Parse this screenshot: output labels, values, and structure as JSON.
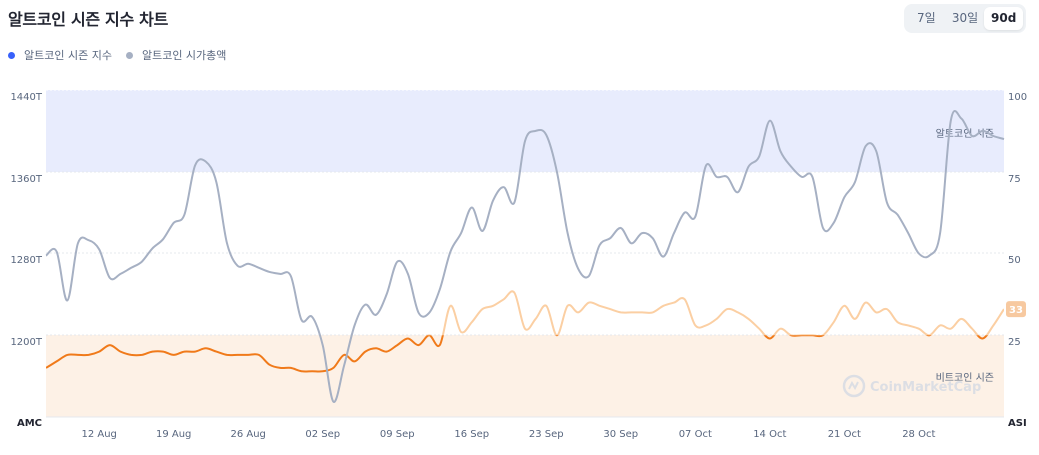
{
  "header": {
    "title": "알트코인 시즌 지수 차트"
  },
  "range_tabs": [
    {
      "label": "7일",
      "active": false
    },
    {
      "label": "30일",
      "active": false
    },
    {
      "label": "90d",
      "active": true
    }
  ],
  "legend": [
    {
      "label": "알트코인 시즌 지수",
      "color": "#3861fb"
    },
    {
      "label": "알트코인 시가총액",
      "color": "#a6b0c3"
    }
  ],
  "watermark": "CoinMarketCap",
  "colors": {
    "altseason_band": "#e8ecfd",
    "bitcoin_band": "#fdf1e6",
    "index_line_dark": "#f07a1a",
    "index_line_light": "#fbcfa3",
    "marketcap_line": "#a6b0c3",
    "badge": "#f7c9a0"
  },
  "chart_data": {
    "type": "line",
    "title": "알트코인 시즌 지수 차트",
    "x_tick_labels": [
      "12 Aug",
      "19 Aug",
      "26 Aug",
      "02 Sep",
      "09 Sep",
      "16 Sep",
      "23 Sep",
      "30 Sep",
      "07 Oct",
      "14 Oct",
      "21 Oct",
      "28 Oct"
    ],
    "x_range": [
      "2024-08-07",
      "2024-11-05"
    ],
    "left_axis": {
      "label": "AMC",
      "ticks": [
        "1440T",
        "1360T",
        "1280T",
        "1200T"
      ],
      "range": [
        1120,
        1440
      ]
    },
    "right_axis": {
      "label": "ASI",
      "ticks": [
        "100",
        "75",
        "50",
        "25"
      ],
      "range": [
        0,
        100
      ]
    },
    "bands": [
      {
        "label": "알트코인 시즌",
        "from": 75,
        "to": 100
      },
      {
        "label": "비트코인 시즌",
        "from": 0,
        "to": 25
      }
    ],
    "current_value_badge": "33",
    "grid": true,
    "legend_position": "top-left",
    "series": [
      {
        "name": "알트코인 시즌 지수",
        "axis": "right",
        "points": [
          [
            "2024-08-07",
            15
          ],
          [
            "2024-08-08",
            17
          ],
          [
            "2024-08-09",
            19
          ],
          [
            "2024-08-10",
            19
          ],
          [
            "2024-08-11",
            19
          ],
          [
            "2024-08-12",
            20
          ],
          [
            "2024-08-13",
            22
          ],
          [
            "2024-08-14",
            20
          ],
          [
            "2024-08-15",
            19
          ],
          [
            "2024-08-16",
            19
          ],
          [
            "2024-08-17",
            20
          ],
          [
            "2024-08-18",
            20
          ],
          [
            "2024-08-19",
            19
          ],
          [
            "2024-08-20",
            20
          ],
          [
            "2024-08-21",
            20
          ],
          [
            "2024-08-22",
            21
          ],
          [
            "2024-08-23",
            20
          ],
          [
            "2024-08-24",
            19
          ],
          [
            "2024-08-25",
            19
          ],
          [
            "2024-08-26",
            19
          ],
          [
            "2024-08-27",
            19
          ],
          [
            "2024-08-28",
            16
          ],
          [
            "2024-08-29",
            15
          ],
          [
            "2024-08-30",
            15
          ],
          [
            "2024-08-31",
            14
          ],
          [
            "2024-09-01",
            14
          ],
          [
            "2024-09-02",
            14
          ],
          [
            "2024-09-03",
            15
          ],
          [
            "2024-09-04",
            19
          ],
          [
            "2024-09-05",
            17
          ],
          [
            "2024-09-06",
            20
          ],
          [
            "2024-09-07",
            21
          ],
          [
            "2024-09-08",
            20
          ],
          [
            "2024-09-09",
            22
          ],
          [
            "2024-09-10",
            24
          ],
          [
            "2024-09-11",
            22
          ],
          [
            "2024-09-12",
            25
          ],
          [
            "2024-09-13",
            22
          ],
          [
            "2024-09-14",
            34
          ],
          [
            "2024-09-15",
            26
          ],
          [
            "2024-09-16",
            29
          ],
          [
            "2024-09-17",
            33
          ],
          [
            "2024-09-18",
            34
          ],
          [
            "2024-09-19",
            36
          ],
          [
            "2024-09-20",
            38
          ],
          [
            "2024-09-21",
            27
          ],
          [
            "2024-09-22",
            30
          ],
          [
            "2024-09-23",
            34
          ],
          [
            "2024-09-24",
            25
          ],
          [
            "2024-09-25",
            34
          ],
          [
            "2024-09-26",
            32
          ],
          [
            "2024-09-27",
            35
          ],
          [
            "2024-09-28",
            34
          ],
          [
            "2024-09-29",
            33
          ],
          [
            "2024-09-30",
            32
          ],
          [
            "2024-10-01",
            32
          ],
          [
            "2024-10-02",
            32
          ],
          [
            "2024-10-03",
            32
          ],
          [
            "2024-10-04",
            34
          ],
          [
            "2024-10-05",
            35
          ],
          [
            "2024-10-06",
            36
          ],
          [
            "2024-10-07",
            28
          ],
          [
            "2024-10-08",
            28
          ],
          [
            "2024-10-09",
            30
          ],
          [
            "2024-10-10",
            33
          ],
          [
            "2024-10-11",
            32
          ],
          [
            "2024-10-12",
            30
          ],
          [
            "2024-10-13",
            27
          ],
          [
            "2024-10-14",
            24
          ],
          [
            "2024-10-15",
            27
          ],
          [
            "2024-10-16",
            25
          ],
          [
            "2024-10-17",
            25
          ],
          [
            "2024-10-18",
            25
          ],
          [
            "2024-10-19",
            25
          ],
          [
            "2024-10-20",
            29
          ],
          [
            "2024-10-21",
            34
          ],
          [
            "2024-10-22",
            30
          ],
          [
            "2024-10-23",
            35
          ],
          [
            "2024-10-24",
            32
          ],
          [
            "2024-10-25",
            33
          ],
          [
            "2024-10-26",
            29
          ],
          [
            "2024-10-27",
            28
          ],
          [
            "2024-10-28",
            27
          ],
          [
            "2024-10-29",
            25
          ],
          [
            "2024-10-30",
            28
          ],
          [
            "2024-10-31",
            27
          ],
          [
            "2024-11-01",
            30
          ],
          [
            "2024-11-02",
            27
          ],
          [
            "2024-11-03",
            24
          ],
          [
            "2024-11-04",
            28
          ],
          [
            "2024-11-05",
            33
          ]
        ]
      },
      {
        "name": "알트코인 시가총액",
        "axis": "left",
        "points": [
          [
            "2024-08-07",
            1278
          ],
          [
            "2024-08-08",
            1282
          ],
          [
            "2024-08-09",
            1234
          ],
          [
            "2024-08-10",
            1290
          ],
          [
            "2024-08-11",
            1293
          ],
          [
            "2024-08-12",
            1284
          ],
          [
            "2024-08-13",
            1256
          ],
          [
            "2024-08-14",
            1260
          ],
          [
            "2024-08-15",
            1266
          ],
          [
            "2024-08-16",
            1272
          ],
          [
            "2024-08-17",
            1285
          ],
          [
            "2024-08-18",
            1294
          ],
          [
            "2024-08-19",
            1310
          ],
          [
            "2024-08-20",
            1318
          ],
          [
            "2024-08-21",
            1366
          ],
          [
            "2024-08-22",
            1370
          ],
          [
            "2024-08-23",
            1350
          ],
          [
            "2024-08-24",
            1290
          ],
          [
            "2024-08-25",
            1268
          ],
          [
            "2024-08-26",
            1270
          ],
          [
            "2024-08-27",
            1266
          ],
          [
            "2024-08-28",
            1262
          ],
          [
            "2024-08-29",
            1260
          ],
          [
            "2024-08-30",
            1258
          ],
          [
            "2024-08-31",
            1215
          ],
          [
            "2024-09-01",
            1218
          ],
          [
            "2024-09-02",
            1190
          ],
          [
            "2024-09-03",
            1135
          ],
          [
            "2024-09-04",
            1170
          ],
          [
            "2024-09-05",
            1210
          ],
          [
            "2024-09-06",
            1230
          ],
          [
            "2024-09-07",
            1220
          ],
          [
            "2024-09-08",
            1240
          ],
          [
            "2024-09-09",
            1272
          ],
          [
            "2024-09-10",
            1260
          ],
          [
            "2024-09-11",
            1222
          ],
          [
            "2024-09-12",
            1222
          ],
          [
            "2024-09-13",
            1245
          ],
          [
            "2024-09-14",
            1282
          ],
          [
            "2024-09-15",
            1300
          ],
          [
            "2024-09-16",
            1325
          ],
          [
            "2024-09-17",
            1302
          ],
          [
            "2024-09-18",
            1332
          ],
          [
            "2024-09-19",
            1345
          ],
          [
            "2024-09-20",
            1330
          ],
          [
            "2024-09-21",
            1390
          ],
          [
            "2024-09-22",
            1400
          ],
          [
            "2024-09-23",
            1396
          ],
          [
            "2024-09-24",
            1360
          ],
          [
            "2024-09-25",
            1300
          ],
          [
            "2024-09-26",
            1265
          ],
          [
            "2024-09-27",
            1258
          ],
          [
            "2024-09-28",
            1288
          ],
          [
            "2024-09-29",
            1295
          ],
          [
            "2024-09-30",
            1305
          ],
          [
            "2024-10-01",
            1290
          ],
          [
            "2024-10-02",
            1300
          ],
          [
            "2024-10-03",
            1295
          ],
          [
            "2024-10-04",
            1277
          ],
          [
            "2024-10-05",
            1300
          ],
          [
            "2024-10-06",
            1320
          ],
          [
            "2024-10-07",
            1316
          ],
          [
            "2024-10-08",
            1366
          ],
          [
            "2024-10-09",
            1355
          ],
          [
            "2024-10-10",
            1355
          ],
          [
            "2024-10-11",
            1340
          ],
          [
            "2024-10-12",
            1365
          ],
          [
            "2024-10-13",
            1375
          ],
          [
            "2024-10-14",
            1410
          ],
          [
            "2024-10-15",
            1380
          ],
          [
            "2024-10-16",
            1365
          ],
          [
            "2024-10-17",
            1355
          ],
          [
            "2024-10-18",
            1355
          ],
          [
            "2024-10-19",
            1305
          ],
          [
            "2024-10-20",
            1310
          ],
          [
            "2024-10-21",
            1335
          ],
          [
            "2024-10-22",
            1350
          ],
          [
            "2024-10-23",
            1385
          ],
          [
            "2024-10-24",
            1380
          ],
          [
            "2024-10-25",
            1330
          ],
          [
            "2024-10-26",
            1318
          ],
          [
            "2024-10-27",
            1300
          ],
          [
            "2024-10-28",
            1280
          ],
          [
            "2024-10-29",
            1278
          ],
          [
            "2024-10-30",
            1300
          ],
          [
            "2024-10-31",
            1410
          ],
          [
            "2024-11-01",
            1412
          ],
          [
            "2024-11-02",
            1395
          ],
          [
            "2024-11-03",
            1400
          ],
          [
            "2024-11-04",
            1395
          ],
          [
            "2024-11-05",
            1392
          ]
        ]
      }
    ]
  }
}
